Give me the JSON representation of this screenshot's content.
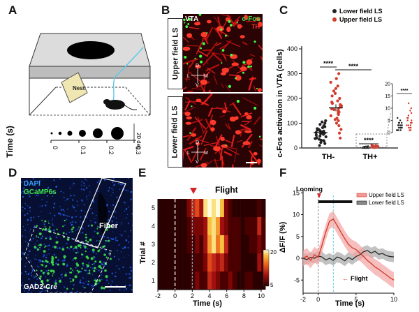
{
  "panel_labels": {
    "a": "A",
    "b": "B",
    "c": "C",
    "d": "D",
    "e": "E",
    "f": "F"
  },
  "panel_a": {
    "nest_label": "Nest",
    "ylabel": "Time (s)",
    "deg_label": "20 deg",
    "ticks": [
      "0",
      "0.1",
      "0.2",
      "0.3"
    ],
    "stimulus_sizes": [
      0.6,
      0.9,
      1.4,
      2.0,
      2.8,
      3.6
    ]
  },
  "panel_b": {
    "region": "VTA",
    "marker_cfos": "c-Fos",
    "marker_th": "TH",
    "row_upper": "Upper field LS",
    "row_lower": "Lower field LS",
    "axis_d": "D",
    "axis_v": "V",
    "axis_l": "L",
    "axis_m": "M"
  },
  "panel_c": {
    "ylabel": "c-Fos activation in VTA (cells)",
    "xticks": [
      "TH-",
      "TH+"
    ],
    "yticks": [
      "0",
      "100",
      "200",
      "300",
      "400"
    ],
    "inset_yticks": [
      "0",
      "5",
      "10",
      "15",
      "20"
    ],
    "legend": [
      "Lower field LS",
      "Upper field LS"
    ],
    "sig_marks": [
      "****",
      "****",
      "****",
      "****"
    ],
    "colors": {
      "lower": "#222222",
      "upper": "#d23a2a"
    }
  },
  "chart_data": {
    "type": "scatter",
    "title": "c-Fos activation in VTA",
    "ylabel": "c-Fos activation in VTA (cells)",
    "categories": [
      "TH-",
      "TH+"
    ],
    "ylim": [
      0,
      400
    ],
    "series": [
      {
        "name": "Lower field LS",
        "means": [
          62,
          3
        ],
        "sem": [
          8,
          0.5
        ],
        "points_thminus": [
          10,
          18,
          22,
          28,
          31,
          35,
          38,
          42,
          45,
          48,
          52,
          55,
          58,
          60,
          62,
          65,
          68,
          70,
          72,
          75,
          78,
          82,
          86,
          90,
          95,
          100,
          105,
          110,
          30,
          40
        ],
        "points_thplus": [
          1,
          1,
          2,
          2,
          2,
          3,
          3,
          3,
          4,
          4,
          2,
          1,
          3,
          5,
          2,
          1,
          4,
          3,
          2,
          6
        ]
      },
      {
        "name": "Upper field LS",
        "means": [
          162,
          4.5
        ],
        "sem": [
          14,
          0.9
        ],
        "points_thminus": [
          40,
          60,
          75,
          90,
          100,
          110,
          120,
          130,
          140,
          145,
          150,
          155,
          160,
          165,
          170,
          175,
          180,
          185,
          190,
          200,
          210,
          220,
          230,
          240,
          250,
          265,
          280,
          300,
          115,
          135,
          158,
          170
        ],
        "points_thplus": [
          1,
          2,
          2,
          3,
          3,
          4,
          4,
          5,
          5,
          6,
          7,
          8,
          9,
          10,
          12,
          3,
          4,
          6,
          2,
          1
        ]
      }
    ],
    "inset": {
      "ylim": [
        0,
        20
      ],
      "lower_mean": 3,
      "upper_mean": 4.5
    }
  },
  "panel_d": {
    "dapi": "DAPI",
    "gcamp": "GCaMP6s",
    "fiber": "Fiber",
    "mouse_line": "GAD2-Cre"
  },
  "panel_e": {
    "title": "Flight",
    "ylabel": "Trial #",
    "xlabel": "Time (s)",
    "xticks": [
      "-2",
      "0",
      "2",
      "4",
      "6",
      "8",
      "10"
    ],
    "yticks": [
      "1",
      "2",
      "3",
      "4",
      "5"
    ],
    "colorbar_ticks": [
      "20",
      "5"
    ],
    "flight_time": 2.0,
    "heatmap_rows": [
      [
        0,
        0,
        0,
        0,
        0,
        0,
        0,
        0,
        1,
        2,
        1,
        1,
        4,
        3,
        2,
        1,
        1,
        2,
        1,
        0,
        0,
        1,
        1,
        0,
        0,
        0
      ],
      [
        0,
        0,
        0,
        0,
        0,
        0,
        0,
        0,
        1,
        1,
        1,
        2,
        5,
        4,
        3,
        4,
        2,
        1,
        1,
        1,
        0,
        0,
        0,
        0,
        3,
        1
      ],
      [
        0,
        0,
        0,
        0,
        0,
        0,
        0,
        1,
        1,
        2,
        1,
        3,
        7,
        9,
        6,
        8,
        4,
        1,
        1,
        1,
        0,
        0,
        1,
        1,
        2,
        1
      ],
      [
        0,
        0,
        0,
        0,
        0,
        0,
        0,
        1,
        2,
        2,
        2,
        3,
        8,
        9,
        7,
        3,
        2,
        1,
        1,
        1,
        0,
        1,
        1,
        1,
        4,
        1
      ],
      [
        0,
        0,
        0,
        0,
        0,
        0,
        0,
        2,
        4,
        5,
        3,
        9,
        10,
        9,
        10,
        8,
        2,
        1,
        0,
        0,
        0,
        0,
        0,
        0,
        1,
        0
      ]
    ]
  },
  "panel_f": {
    "ylabel": "ΔF/F (%)",
    "xlabel": "Time (s)",
    "xticks": [
      "-2",
      "0",
      "5",
      "10"
    ],
    "yticks": [
      "15",
      "10",
      "5",
      "0",
      "-5"
    ],
    "looming_label": "Looming",
    "flight_label": "Flight",
    "legend": [
      "Upper field LS",
      "Lower field LS"
    ],
    "upper_x": [
      -2,
      -1.5,
      -1,
      -0.5,
      0,
      0.5,
      1,
      1.5,
      2,
      2.5,
      3,
      3.5,
      4,
      4.5,
      5,
      5.5,
      6,
      6.5,
      7,
      7.5,
      8,
      8.5,
      9,
      9.5,
      10
    ],
    "upper_y": [
      0,
      0.5,
      -0.5,
      0.8,
      0.2,
      3,
      6,
      8.5,
      9,
      7.5,
      6,
      4.5,
      3.2,
      2.4,
      2,
      1.2,
      0.4,
      -0.5,
      -1.2,
      -2,
      -2.5,
      -3.2,
      -3.8,
      -4.5,
      -5
    ],
    "lower_y": [
      0,
      -0.3,
      0.2,
      0,
      0.5,
      0.3,
      -0.4,
      0,
      -0.5,
      0.3,
      0,
      -0.6,
      0.2,
      -0.3,
      0.4,
      0.8,
      1.5,
      1.8,
      1.2,
      1.6,
      0.9,
      1.1,
      0.6,
      0.4,
      0.3
    ],
    "ylim": [
      -8,
      16
    ],
    "xlim": [
      -2,
      10
    ]
  }
}
